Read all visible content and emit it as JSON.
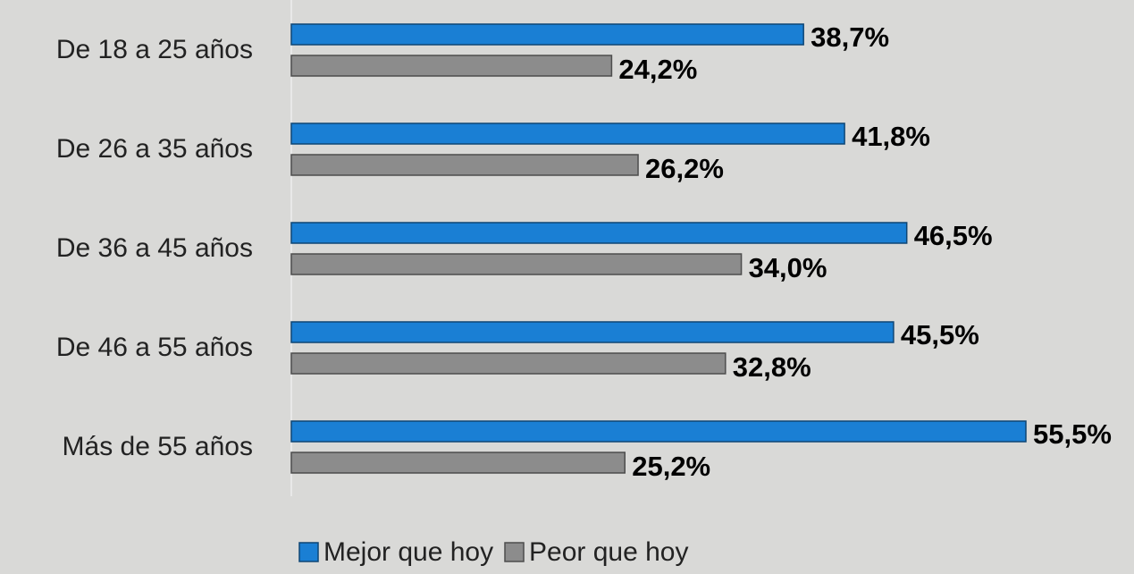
{
  "chart_data": {
    "type": "bar",
    "orientation": "horizontal",
    "categories": [
      "De 18 a 25 años",
      "De 26 a 35 años",
      "De 36 a 45 años",
      "De 46 a 55 años",
      "Más de 55 años"
    ],
    "series": [
      {
        "name": "Mejor que hoy",
        "color": "#1a7fd4",
        "values": [
          38.7,
          41.8,
          46.5,
          45.5,
          55.5
        ],
        "value_labels": [
          "38,7%",
          "41,8%",
          "46,5%",
          "45,5%",
          "55,5%"
        ]
      },
      {
        "name": "Peor que hoy",
        "color": "#8c8c8c",
        "values": [
          24.2,
          26.2,
          34.0,
          32.8,
          25.2
        ],
        "value_labels": [
          "24,2%",
          "26,2%",
          "34,0%",
          "32,8%",
          "25,2%"
        ]
      }
    ],
    "legend": "bottom"
  }
}
